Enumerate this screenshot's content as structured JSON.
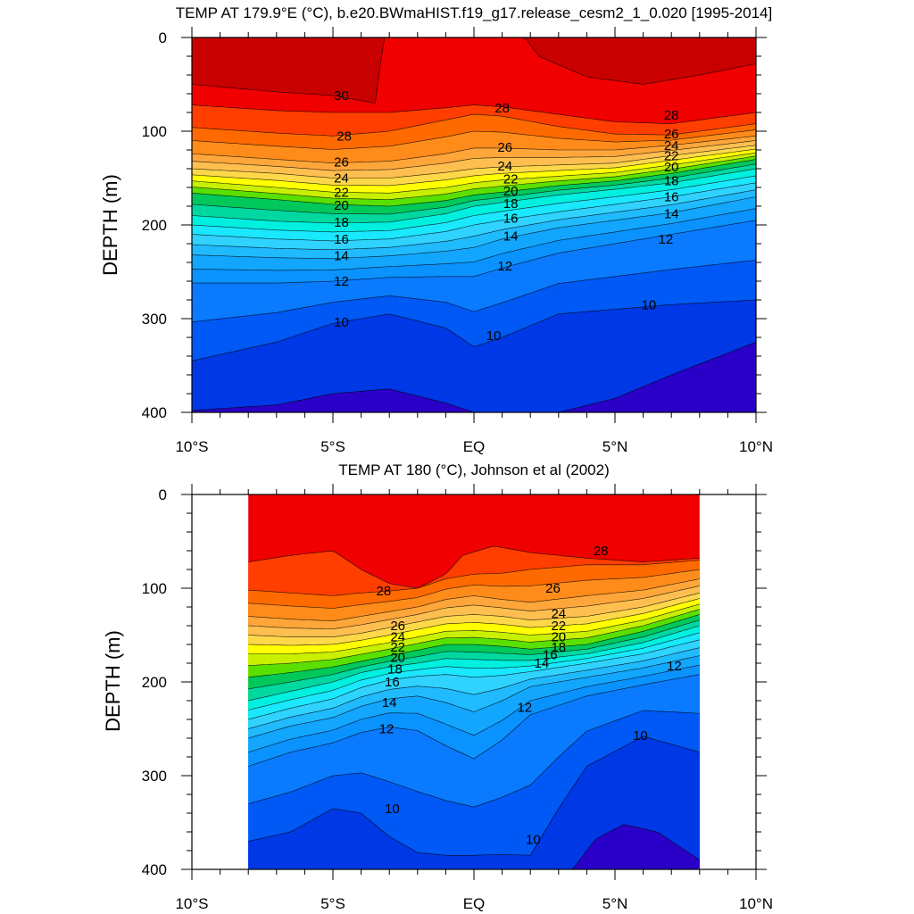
{
  "chart_data": [
    {
      "type": "heatmap",
      "title": "TEMP AT 179.9°E (°C), b.e20.BWmaHIST.f19_g17.release_cesm2_1_0.020 [1995-2014]",
      "xlabel": "",
      "ylabel": "DEPTH (m)",
      "xlim": [
        -10,
        10
      ],
      "ylim": [
        400,
        0
      ],
      "x_ticks": [
        "10°S",
        "5°S",
        "EQ",
        "5°N",
        "10°N"
      ],
      "y_ticks": [
        "0",
        "100",
        "200",
        "300",
        "400"
      ],
      "contour_interval": 1,
      "contour_labels": [
        "30",
        "28",
        "26",
        "24",
        "22",
        "20",
        "18",
        "16",
        "14",
        "12",
        "10"
      ],
      "isotherms": [
        {
          "temp": 30,
          "lat": [
            -10,
            -7,
            -5,
            -3.5,
            -3.2,
            1.8,
            2.3,
            4,
            6,
            8,
            10
          ],
          "depth": [
            50,
            58,
            62,
            70,
            0,
            0,
            20,
            42,
            50,
            40,
            28
          ]
        },
        {
          "temp": 29,
          "lat": [
            -10,
            -7,
            -5,
            -3,
            -1,
            0,
            1,
            3,
            5,
            7,
            10
          ],
          "depth": [
            72,
            78,
            80,
            80,
            75,
            72,
            74,
            82,
            90,
            92,
            80
          ]
        },
        {
          "temp": 28,
          "lat": [
            -10,
            -7,
            -5,
            -3,
            -1,
            0,
            1,
            3,
            5,
            7,
            10
          ],
          "depth": [
            96,
            102,
            105,
            100,
            88,
            82,
            84,
            95,
            103,
            104,
            92
          ]
        },
        {
          "temp": 26,
          "lat": [
            -10,
            -7,
            -5,
            -3,
            -1,
            0,
            1,
            3,
            5,
            7,
            10
          ],
          "depth": [
            124,
            130,
            134,
            132,
            124,
            118,
            118,
            120,
            120,
            115,
            105
          ]
        },
        {
          "temp": 24,
          "lat": [
            -10,
            -7,
            -5,
            -3,
            -1,
            0,
            1,
            3,
            5,
            7,
            10
          ],
          "depth": [
            140,
            145,
            150,
            150,
            144,
            140,
            138,
            136,
            134,
            126,
            115
          ]
        },
        {
          "temp": 22,
          "lat": [
            -10,
            -7,
            -5,
            -3,
            -1,
            0,
            1,
            3,
            5,
            7,
            10
          ],
          "depth": [
            153,
            160,
            165,
            166,
            160,
            155,
            152,
            148,
            144,
            136,
            123
          ]
        },
        {
          "temp": 20,
          "lat": [
            -10,
            -7,
            -5,
            -3,
            -1,
            0,
            1,
            3,
            5,
            7,
            10
          ],
          "depth": [
            166,
            173,
            178,
            180,
            174,
            168,
            165,
            158,
            153,
            145,
            130
          ]
        },
        {
          "temp": 18,
          "lat": [
            -10,
            -7,
            -5,
            -3,
            -1,
            0,
            1,
            3,
            5,
            7,
            10
          ],
          "depth": [
            190,
            196,
            198,
            197,
            188,
            180,
            176,
            168,
            162,
            155,
            140
          ]
        },
        {
          "temp": 16,
          "lat": [
            -10,
            -7,
            -5,
            -3,
            -1,
            0,
            1,
            3,
            5,
            7,
            10
          ],
          "depth": [
            210,
            215,
            217,
            215,
            207,
            200,
            195,
            186,
            178,
            170,
            155
          ]
        },
        {
          "temp": 14,
          "lat": [
            -10,
            -7,
            -5,
            -3,
            -1,
            0,
            1,
            3,
            5,
            7,
            10
          ],
          "depth": [
            232,
            235,
            236,
            233,
            228,
            224,
            215,
            203,
            195,
            187,
            170
          ]
        },
        {
          "temp": 12,
          "lat": [
            -10,
            -7,
            -5,
            -3,
            -1,
            0,
            1,
            3,
            5,
            7,
            10
          ],
          "depth": [
            262,
            262,
            260,
            256,
            255,
            255,
            246,
            230,
            220,
            210,
            195
          ]
        },
        {
          "temp": 10,
          "lat": [
            -10,
            -7,
            -5,
            -3,
            -1,
            0,
            1,
            3,
            5,
            7,
            10
          ],
          "depth": [
            345,
            325,
            305,
            295,
            310,
            330,
            320,
            295,
            290,
            285,
            280
          ]
        },
        {
          "temp": 9,
          "lat": [
            -10,
            -7,
            -5,
            -3,
            -1,
            0,
            1,
            3,
            5,
            7,
            10
          ],
          "depth": [
            398,
            392,
            380,
            375,
            390,
            400,
            400,
            400,
            385,
            360,
            325
          ]
        }
      ],
      "labels": [
        {
          "text": "30",
          "lat": -4.7,
          "depth": 62
        },
        {
          "text": "28",
          "lat": -4.6,
          "depth": 105
        },
        {
          "text": "26",
          "lat": -4.7,
          "depth": 133
        },
        {
          "text": "24",
          "lat": -4.7,
          "depth": 150
        },
        {
          "text": "22",
          "lat": -4.7,
          "depth": 165
        },
        {
          "text": "20",
          "lat": -4.7,
          "depth": 179
        },
        {
          "text": "18",
          "lat": -4.7,
          "depth": 197
        },
        {
          "text": "16",
          "lat": -4.7,
          "depth": 215
        },
        {
          "text": "14",
          "lat": -4.7,
          "depth": 233
        },
        {
          "text": "12",
          "lat": -4.7,
          "depth": 260
        },
        {
          "text": "10",
          "lat": -4.7,
          "depth": 304
        },
        {
          "text": "28",
          "lat": 1.0,
          "depth": 75
        },
        {
          "text": "26",
          "lat": 1.1,
          "depth": 117
        },
        {
          "text": "24",
          "lat": 1.1,
          "depth": 137
        },
        {
          "text": "22",
          "lat": 1.3,
          "depth": 151
        },
        {
          "text": "20",
          "lat": 1.3,
          "depth": 164
        },
        {
          "text": "18",
          "lat": 1.3,
          "depth": 177
        },
        {
          "text": "16",
          "lat": 1.3,
          "depth": 193
        },
        {
          "text": "14",
          "lat": 1.3,
          "depth": 212
        },
        {
          "text": "12",
          "lat": 1.1,
          "depth": 244
        },
        {
          "text": "10",
          "lat": 0.7,
          "depth": 318
        },
        {
          "text": "28",
          "lat": 7.0,
          "depth": 83
        },
        {
          "text": "26",
          "lat": 7.0,
          "depth": 103
        },
        {
          "text": "24",
          "lat": 7.0,
          "depth": 115
        },
        {
          "text": "22",
          "lat": 7.0,
          "depth": 126
        },
        {
          "text": "20",
          "lat": 7.0,
          "depth": 138
        },
        {
          "text": "18",
          "lat": 7.0,
          "depth": 153
        },
        {
          "text": "16",
          "lat": 7.0,
          "depth": 170
        },
        {
          "text": "14",
          "lat": 7.0,
          "depth": 188
        },
        {
          "text": "12",
          "lat": 6.8,
          "depth": 215
        },
        {
          "text": "10",
          "lat": 6.2,
          "depth": 285
        }
      ]
    },
    {
      "type": "heatmap",
      "title": "TEMP AT 180 (°C), Johnson et al (2002)",
      "xlabel": "",
      "ylabel": "DEPTH (m)",
      "xlim": [
        -10,
        10
      ],
      "ylim": [
        400,
        0
      ],
      "data_lat_range": [
        -8,
        8
      ],
      "x_ticks": [
        "10°S",
        "5°S",
        "EQ",
        "5°N",
        "10°N"
      ],
      "y_ticks": [
        "0",
        "100",
        "200",
        "300",
        "400"
      ],
      "contour_interval": 1,
      "contour_labels": [
        "28",
        "26",
        "24",
        "22",
        "20",
        "18",
        "16",
        "14",
        "12",
        "10"
      ],
      "isotherms": [
        {
          "temp": 29,
          "lat": [
            -8,
            -6.5,
            -5,
            -4,
            -3,
            -2,
            -1,
            -0.4,
            0.7,
            2,
            4,
            6,
            8
          ],
          "depth": [
            72,
            65,
            60,
            80,
            95,
            100,
            85,
            65,
            55,
            62,
            68,
            72,
            68
          ]
        },
        {
          "temp": 28,
          "lat": [
            -8,
            -6.5,
            -5,
            -4,
            -3,
            -2,
            -1,
            0,
            1,
            2,
            4,
            6,
            8
          ],
          "depth": [
            102,
            105,
            108,
            105,
            103,
            100,
            90,
            85,
            84,
            80,
            75,
            75,
            70
          ]
        },
        {
          "temp": 26,
          "lat": [
            -8,
            -6.5,
            -5,
            -4,
            -3,
            -2,
            -1,
            0,
            1,
            2,
            4,
            6,
            8
          ],
          "depth": [
            130,
            133,
            135,
            130,
            125,
            120,
            112,
            108,
            112,
            115,
            108,
            102,
            90
          ]
        },
        {
          "temp": 24,
          "lat": [
            -8,
            -6.5,
            -5,
            -4,
            -3,
            -2,
            -1,
            0,
            1,
            2,
            4,
            6,
            8
          ],
          "depth": [
            150,
            152,
            152,
            148,
            142,
            136,
            130,
            128,
            130,
            134,
            130,
            120,
            105
          ]
        },
        {
          "temp": 22,
          "lat": [
            -8,
            -6.5,
            -5,
            -4,
            -3,
            -2,
            -1,
            0,
            1,
            2,
            4,
            6,
            8
          ],
          "depth": [
            170,
            170,
            168,
            163,
            158,
            152,
            146,
            145,
            147,
            150,
            146,
            134,
            117
          ]
        },
        {
          "temp": 20,
          "lat": [
            -8,
            -6.5,
            -5,
            -4,
            -3,
            -2,
            -1,
            0,
            1,
            2,
            4,
            6,
            8
          ],
          "depth": [
            195,
            190,
            184,
            178,
            172,
            166,
            160,
            160,
            162,
            165,
            160,
            146,
            128
          ]
        },
        {
          "temp": 18,
          "lat": [
            -8,
            -6.5,
            -5,
            -4,
            -3,
            -2,
            -1,
            0,
            1,
            2,
            4,
            6,
            8
          ],
          "depth": [
            220,
            210,
            200,
            190,
            184,
            180,
            175,
            176,
            177,
            177,
            170,
            158,
            140
          ]
        },
        {
          "temp": 16,
          "lat": [
            -8,
            -6.5,
            -5,
            -4,
            -3,
            -2,
            -1,
            0,
            1,
            2,
            4,
            6,
            8
          ],
          "depth": [
            240,
            228,
            218,
            206,
            198,
            194,
            192,
            195,
            193,
            189,
            180,
            170,
            155
          ]
        },
        {
          "temp": 14,
          "lat": [
            -8,
            -6.5,
            -5,
            -4,
            -3,
            -2,
            -1,
            0,
            1,
            2,
            4,
            6,
            8
          ],
          "depth": [
            260,
            247,
            238,
            226,
            218,
            215,
            222,
            232,
            220,
            205,
            195,
            185,
            172
          ]
        },
        {
          "temp": 12,
          "lat": [
            -8,
            -6.5,
            -5,
            -4,
            -3,
            -2,
            -1,
            0,
            1,
            2,
            4,
            6,
            8
          ],
          "depth": [
            290,
            275,
            265,
            254,
            248,
            252,
            268,
            282,
            262,
            235,
            215,
            203,
            192
          ]
        },
        {
          "temp": 10,
          "lat": [
            -8,
            -6.5,
            -5,
            -4,
            -3,
            -2,
            -1,
            0,
            1,
            2,
            3,
            4,
            6,
            8
          ],
          "depth": [
            370,
            360,
            335,
            340,
            365,
            382,
            385,
            385,
            384,
            385,
            335,
            290,
            258,
            275
          ]
        },
        {
          "temp": 9,
          "lat": [
            -8,
            -5,
            -3,
            2,
            3.5,
            4.3,
            5.3,
            6.5,
            7.5,
            8
          ],
          "depth": [
            400,
            400,
            400,
            400,
            400,
            368,
            352,
            360,
            380,
            390
          ]
        }
      ],
      "labels": [
        {
          "text": "28",
          "lat": -3.2,
          "depth": 103
        },
        {
          "text": "26",
          "lat": -2.7,
          "depth": 140
        },
        {
          "text": "24",
          "lat": -2.7,
          "depth": 152
        },
        {
          "text": "22",
          "lat": -2.7,
          "depth": 163
        },
        {
          "text": "20",
          "lat": -2.7,
          "depth": 174
        },
        {
          "text": "18",
          "lat": -2.8,
          "depth": 186
        },
        {
          "text": "16",
          "lat": -2.9,
          "depth": 200
        },
        {
          "text": "14",
          "lat": -3.0,
          "depth": 222
        },
        {
          "text": "12",
          "lat": -3.1,
          "depth": 250
        },
        {
          "text": "10",
          "lat": -2.9,
          "depth": 335
        },
        {
          "text": "26",
          "lat": 2.8,
          "depth": 100
        },
        {
          "text": "24",
          "lat": 3.0,
          "depth": 127
        },
        {
          "text": "22",
          "lat": 3.0,
          "depth": 140
        },
        {
          "text": "20",
          "lat": 3.0,
          "depth": 152
        },
        {
          "text": "18",
          "lat": 3.0,
          "depth": 163
        },
        {
          "text": "16",
          "lat": 2.7,
          "depth": 171
        },
        {
          "text": "14",
          "lat": 2.4,
          "depth": 180
        },
        {
          "text": "12",
          "lat": 1.8,
          "depth": 227
        },
        {
          "text": "10",
          "lat": 2.1,
          "depth": 368
        },
        {
          "text": "28",
          "lat": 4.5,
          "depth": 60
        },
        {
          "text": "10",
          "lat": 5.9,
          "depth": 257
        },
        {
          "text": "12",
          "lat": 7.1,
          "depth": 183
        }
      ]
    }
  ]
}
